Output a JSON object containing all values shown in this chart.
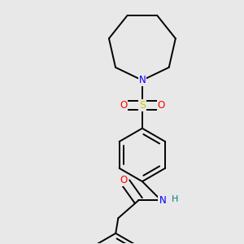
{
  "bg_color": "#e8e8e8",
  "bond_color": "#000000",
  "atom_colors": {
    "N": "#0000ff",
    "O": "#ff0000",
    "S": "#cccc00",
    "H": "#008080",
    "C": "#000000"
  },
  "line_width": 1.4,
  "figsize": [
    3.0,
    3.0
  ],
  "dpi": 100
}
